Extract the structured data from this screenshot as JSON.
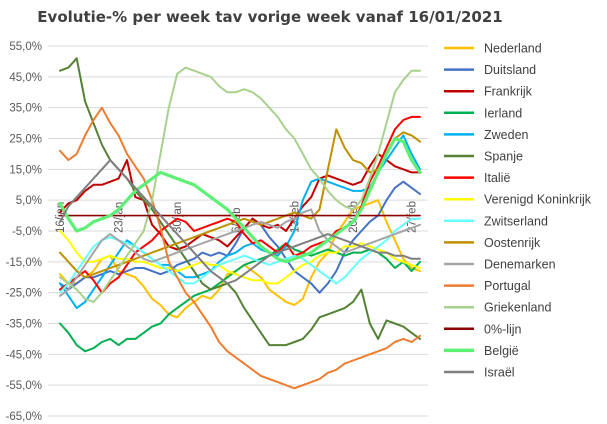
{
  "chart_data": {
    "type": "line",
    "title": "Evolutie-% per week tav vorige week vanaf 16/01/2021",
    "xlabel": "",
    "ylabel": "",
    "ylim": [
      -65,
      55
    ],
    "yticks": [
      55,
      45,
      35,
      25,
      15,
      5,
      -5,
      -15,
      -25,
      -35,
      -45,
      -55,
      -65
    ],
    "ytick_labels": [
      "55,0%",
      "45,0%",
      "35,0%",
      "25,0%",
      "15,0%",
      "5,0%",
      "-5,0%",
      "-15,0%",
      "-25,0%",
      "-35,0%",
      "-45,0%",
      "-55,0%",
      "-65,0%"
    ],
    "x_ticks": [
      {
        "index": 0,
        "label": "16/jan"
      },
      {
        "index": 7,
        "label": "23/jan"
      },
      {
        "index": 14,
        "label": "30/jan"
      },
      {
        "index": 21,
        "label": "6/feb"
      },
      {
        "index": 28,
        "label": "13/feb"
      },
      {
        "index": 35,
        "label": "20/feb"
      },
      {
        "index": 42,
        "label": "27/feb"
      }
    ],
    "x_count": 44,
    "grid": true,
    "legend_position": "right",
    "series": [
      {
        "name": "Nederland",
        "color": "#FFC000",
        "values": [
          -19,
          -22,
          -22,
          -20,
          -18,
          -14,
          -13,
          -18,
          -19,
          -20,
          -23,
          -27,
          -29,
          -32,
          -33,
          -30,
          -28,
          -26,
          -27,
          -24,
          -19,
          -18,
          -16,
          -18,
          -20,
          -24,
          -26,
          -28,
          -29,
          -27,
          -20,
          -15,
          -12,
          -6,
          -2,
          2,
          3,
          4,
          5,
          -2,
          -8,
          -14,
          -17,
          -18
        ]
      },
      {
        "name": "Duitsland",
        "color": "#4472C4",
        "values": [
          -22,
          -24,
          -22,
          -20,
          -20,
          -19,
          -18,
          -19,
          -18,
          -17,
          -17,
          -18,
          -19,
          -18,
          -16,
          -15,
          -14,
          -12,
          -13,
          -12,
          -13,
          -9,
          -4,
          -1,
          -3,
          -7,
          -10,
          -14,
          -18,
          -20,
          -22,
          -25,
          -22,
          -18,
          -12,
          -8,
          -5,
          -2,
          0,
          5,
          9,
          11,
          9,
          7
        ]
      },
      {
        "name": "Frankrijk",
        "color": "#C00000",
        "values": [
          1,
          4,
          5,
          8,
          10,
          10,
          11,
          12,
          18,
          6,
          5,
          -3,
          -6,
          -10,
          -11,
          -10,
          -8,
          -6,
          -7,
          -8,
          -10,
          -7,
          -4,
          -1,
          -3,
          -4,
          -3,
          -5,
          -1,
          3,
          6,
          12,
          13,
          12,
          11,
          10,
          11,
          16,
          20,
          18,
          16,
          15,
          14,
          14
        ]
      },
      {
        "name": "Ierland",
        "color": "#00B050",
        "values": [
          -35,
          -38,
          -42,
          -44,
          -43,
          -41,
          -40,
          -42,
          -40,
          -40,
          -38,
          -36,
          -35,
          -32,
          -30,
          -28,
          -26,
          -25,
          -24,
          -22,
          -20,
          -18,
          -16,
          -15,
          -14,
          -13,
          -11,
          -9,
          -11,
          -12,
          -13,
          -12,
          -11,
          -12,
          -13,
          -12,
          -12,
          -11,
          -12,
          -14,
          -17,
          -15,
          -18,
          -15
        ]
      },
      {
        "name": "Zweden",
        "color": "#00B0F0",
        "values": [
          -22,
          -26,
          -30,
          -28,
          -24,
          -20,
          -16,
          -12,
          -8,
          -10,
          -12,
          -14,
          -16,
          -16,
          -18,
          -20,
          -20,
          -19,
          -18,
          -15,
          -13,
          -12,
          -10,
          -9,
          -11,
          -12,
          -13,
          -10,
          -5,
          5,
          11,
          12,
          11,
          10,
          9,
          8,
          8,
          9,
          14,
          18,
          22,
          26,
          20,
          15
        ]
      },
      {
        "name": "Spanje",
        "color": "#548235",
        "values": [
          47,
          48,
          51,
          37,
          30,
          23,
          18,
          15,
          12,
          8,
          5,
          2,
          -2,
          -6,
          -10,
          -14,
          -18,
          -22,
          -24,
          -23,
          -22,
          -25,
          -30,
          -34,
          -38,
          -42,
          -42,
          -42,
          -41,
          -40,
          -37,
          -33,
          -32,
          -31,
          -30,
          -28,
          -24,
          -35,
          -40,
          -34,
          -35,
          -36,
          -38,
          -40
        ]
      },
      {
        "name": "Italië",
        "color": "#FF0000",
        "values": [
          -24,
          -22,
          -20,
          -18,
          -21,
          -25,
          -22,
          -20,
          -16,
          -12,
          -10,
          -8,
          -5,
          -3,
          -1,
          -2,
          -5,
          -4,
          -3,
          -2,
          -1,
          -2,
          -6,
          -9,
          -8,
          -10,
          -12,
          -9,
          -13,
          -12,
          -10,
          -9,
          -8,
          -5,
          -4,
          -2,
          3,
          11,
          16,
          22,
          28,
          31,
          32,
          32
        ]
      },
      {
        "name": "Verenigd Koninkrijk",
        "color": "#FFFF00",
        "values": [
          -5,
          -8,
          -12,
          -15,
          -15,
          -14,
          -13,
          -14,
          -14,
          -15,
          -15,
          -16,
          -17,
          -17,
          -18,
          -17,
          -16,
          -15,
          -16,
          -16,
          -18,
          -19,
          -20,
          -21,
          -21,
          -22,
          -22,
          -20,
          -18,
          -16,
          -15,
          -13,
          -12,
          -12,
          -10,
          -10,
          -9,
          -10,
          -11,
          -12,
          -14,
          -15,
          -16,
          -17
        ]
      },
      {
        "name": "Zwitserland",
        "color": "#66FFFF",
        "values": [
          -25,
          -22,
          -18,
          -14,
          -10,
          -8,
          -7,
          -8,
          -9,
          -10,
          -12,
          -14,
          -16,
          -18,
          -20,
          -22,
          -22,
          -20,
          -18,
          -16,
          -15,
          -14,
          -13,
          -14,
          -15,
          -16,
          -15,
          -14,
          -13,
          -14,
          -16,
          -18,
          -20,
          -22,
          -20,
          -17,
          -14,
          -12,
          -10,
          -8,
          -5,
          -3,
          -1,
          -1
        ]
      },
      {
        "name": "Oostenrijk",
        "color": "#BF9000",
        "values": [
          -12,
          -15,
          -18,
          -20,
          -19,
          -18,
          -17,
          -16,
          -15,
          -14,
          -13,
          -12,
          -11,
          -10,
          -9,
          -8,
          -7,
          -6,
          -5,
          -4,
          -3,
          -2,
          -1,
          -2,
          -3,
          -2,
          -1,
          0,
          1,
          0,
          -1,
          2,
          15,
          28,
          22,
          18,
          17,
          14,
          15,
          20,
          25,
          27,
          26,
          24
        ]
      },
      {
        "name": "Denemarken",
        "color": "#A5A5A5",
        "values": [
          -26,
          -24,
          -20,
          -16,
          -12,
          -8,
          -6,
          -8,
          -10,
          -12,
          -14,
          -15,
          -14,
          -13,
          -12,
          -11,
          -10,
          -9,
          -8,
          -7,
          -6,
          -5,
          -4,
          -3,
          -2,
          -3,
          -4,
          -2,
          -1,
          1,
          2,
          -5,
          -8,
          -10,
          -12,
          -11,
          -10,
          -9,
          -8,
          -7,
          -6,
          -5,
          -4,
          -3
        ]
      },
      {
        "name": "Portugal",
        "color": "#ED7D31",
        "values": [
          21,
          18,
          20,
          26,
          31,
          35,
          30,
          26,
          20,
          16,
          12,
          5,
          -4,
          -15,
          -20,
          -25,
          -28,
          -32,
          -36,
          -41,
          -44,
          -46,
          -48,
          -50,
          -52,
          -53,
          -54,
          -55,
          -56,
          -55,
          -54,
          -53,
          -51,
          -50,
          -48,
          -47,
          -46,
          -45,
          -44,
          -43,
          -41,
          -40,
          -41,
          -39
        ]
      },
      {
        "name": "Griekenland",
        "color": "#A9D18E",
        "values": [
          -20,
          -22,
          -24,
          -27,
          -28,
          -25,
          -21,
          -17,
          -13,
          -9,
          -5,
          5,
          20,
          35,
          46,
          48,
          47,
          46,
          45,
          42,
          40,
          40,
          41,
          40,
          38,
          35,
          32,
          28,
          25,
          20,
          15,
          12,
          8,
          5,
          3,
          2,
          5,
          12,
          20,
          30,
          40,
          44,
          47,
          47
        ]
      },
      {
        "name": "0%-lijn",
        "color": "#8B0000",
        "values": [
          0,
          0,
          0,
          0,
          0,
          0,
          0,
          0,
          0,
          0,
          0,
          0,
          0,
          0,
          0,
          0,
          0,
          0,
          0,
          0,
          0,
          0,
          0,
          0,
          0,
          0,
          0,
          0,
          0,
          0,
          0,
          0,
          0,
          0,
          0,
          0,
          0,
          0,
          0,
          0,
          0,
          0,
          0,
          0
        ]
      },
      {
        "name": "België",
        "color": "#5EF075",
        "values": [
          4,
          -1,
          -5,
          -4,
          -2,
          -1,
          0,
          2,
          5,
          8,
          10,
          12,
          14,
          13,
          12,
          11,
          10,
          8,
          6,
          4,
          2,
          -1,
          -4,
          -7,
          -10,
          -12,
          -14,
          -15,
          -14,
          -13,
          -12,
          -10,
          -8,
          -6,
          -4,
          -2,
          2,
          8,
          14,
          20,
          25,
          24,
          18,
          14
        ]
      },
      {
        "name": "Israël",
        "color": "#7F7F7F",
        "values": [
          -2,
          3,
          6,
          9,
          12,
          15,
          18,
          15,
          12,
          9,
          6,
          3,
          0,
          -3,
          -6,
          -9,
          -12,
          -15,
          -18,
          -20,
          -22,
          -21,
          -19,
          -17,
          -15,
          -13,
          -12,
          -11,
          -10,
          -9,
          -8,
          -7,
          -6,
          -7,
          -8,
          -9,
          -10,
          -11,
          -12,
          -12,
          -13,
          -13,
          -14,
          -14
        ]
      }
    ]
  }
}
